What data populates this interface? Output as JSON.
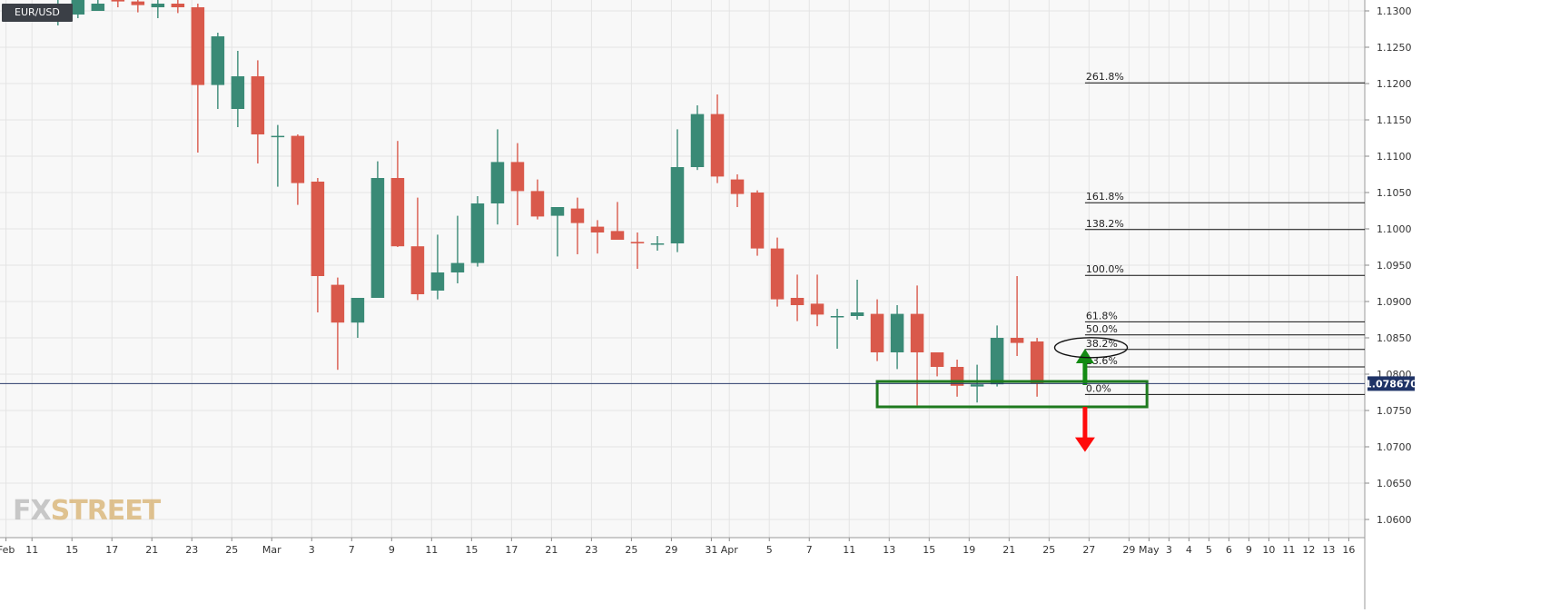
{
  "symbol": "EUR/USD",
  "logo": {
    "part1": "FX",
    "part2": "STREET"
  },
  "colors": {
    "background": "#f8f8f8",
    "grid": "#e4e4e4",
    "bull": "#3a8a76",
    "bear": "#d9594b",
    "price_line": "#2a3b6b",
    "price_label_bg": "#1f3366",
    "fib_line": "#111111",
    "box": "#1f7a1f",
    "arrow_up": "#138a13",
    "arrow_down": "#ff0a0a",
    "axis_text": "#333333"
  },
  "chart_data": {
    "type": "candlestick",
    "title": "EUR/USD",
    "y_axis": {
      "ylim": [
        1.0575,
        1.1315
      ],
      "ticks": [
        "1.0600",
        "1.0650",
        "1.0700",
        "1.0750",
        "1.0800",
        "1.0850",
        "1.0900",
        "1.0950",
        "1.1000",
        "1.1050",
        "1.1100",
        "1.1150",
        "1.1200",
        "1.1250",
        "1.1300"
      ],
      "side": "right"
    },
    "x_axis": {
      "labels": [
        {
          "label": "Feb",
          "i": -2.6
        },
        {
          "label": "11",
          "i": -1.3
        },
        {
          "label": "15",
          "i": 0.7
        },
        {
          "label": "17",
          "i": 2.7
        },
        {
          "label": "21",
          "i": 4.7
        },
        {
          "label": "23",
          "i": 6.7
        },
        {
          "label": "25",
          "i": 8.7
        },
        {
          "label": "Mar",
          "i": 10.7
        },
        {
          "label": "3",
          "i": 12.7
        },
        {
          "label": "7",
          "i": 14.7
        },
        {
          "label": "9",
          "i": 16.7
        },
        {
          "label": "11",
          "i": 18.7
        },
        {
          "label": "15",
          "i": 20.7
        },
        {
          "label": "17",
          "i": 22.7
        },
        {
          "label": "21",
          "i": 24.7
        },
        {
          "label": "23",
          "i": 26.7
        },
        {
          "label": "25",
          "i": 28.7
        },
        {
          "label": "29",
          "i": 30.7
        },
        {
          "label": "31",
          "i": 32.7
        },
        {
          "label": "Apr",
          "i": 33.6
        },
        {
          "label": "5",
          "i": 35.6
        },
        {
          "label": "7",
          "i": 37.6
        },
        {
          "label": "11",
          "i": 39.6
        },
        {
          "label": "13",
          "i": 41.6
        },
        {
          "label": "15",
          "i": 43.6
        },
        {
          "label": "19",
          "i": 45.6
        },
        {
          "label": "21",
          "i": 47.6
        },
        {
          "label": "25",
          "i": 49.6
        },
        {
          "label": "27",
          "i": 51.6
        },
        {
          "label": "29",
          "i": 53.6
        },
        {
          "label": "May",
          "i": 54.6
        },
        {
          "label": "3",
          "i": 55.6
        },
        {
          "label": "4",
          "i": 56.6
        },
        {
          "label": "5",
          "i": 57.6
        },
        {
          "label": "6",
          "i": 58.6
        },
        {
          "label": "9",
          "i": 59.6
        },
        {
          "label": "10",
          "i": 60.6
        },
        {
          "label": "11",
          "i": 61.6
        },
        {
          "label": "12",
          "i": 62.6
        },
        {
          "label": "13",
          "i": 63.6
        },
        {
          "label": "16",
          "i": 64.6
        }
      ],
      "xlim": [
        -2.9,
        65.4
      ]
    },
    "candles": [
      {
        "o": 1.13,
        "h": 1.1315,
        "l": 1.128,
        "c": 1.131
      },
      {
        "o": 1.1295,
        "h": 1.1315,
        "l": 1.129,
        "c": 1.1315
      },
      {
        "o": 1.13,
        "h": 1.1315,
        "l": 1.13,
        "c": 1.131
      },
      {
        "o": 1.1315,
        "h": 1.1315,
        "l": 1.1305,
        "c": 1.1313
      },
      {
        "o": 1.1313,
        "h": 1.1315,
        "l": 1.1298,
        "c": 1.1308
      },
      {
        "o": 1.1305,
        "h": 1.1315,
        "l": 1.129,
        "c": 1.131
      },
      {
        "o": 1.131,
        "h": 1.1315,
        "l": 1.1297,
        "c": 1.1305
      },
      {
        "o": 1.1305,
        "h": 1.131,
        "l": 1.1105,
        "c": 1.1198
      },
      {
        "o": 1.1198,
        "h": 1.127,
        "l": 1.1165,
        "c": 1.1265
      },
      {
        "o": 1.1165,
        "h": 1.1245,
        "l": 1.114,
        "c": 1.121
      },
      {
        "o": 1.121,
        "h": 1.1232,
        "l": 1.109,
        "c": 1.113
      },
      {
        "o": 1.1128,
        "h": 1.1143,
        "l": 1.1058,
        "c": 1.1128
      },
      {
        "o": 1.1128,
        "h": 1.113,
        "l": 1.1033,
        "c": 1.1063
      },
      {
        "o": 1.1065,
        "h": 1.107,
        "l": 1.0885,
        "c": 1.0935
      },
      {
        "o": 1.0923,
        "h": 1.0933,
        "l": 1.0806,
        "c": 1.0871
      },
      {
        "o": 1.0871,
        "h": 1.0905,
        "l": 1.085,
        "c": 1.0905
      },
      {
        "o": 1.0905,
        "h": 1.1093,
        "l": 1.0905,
        "c": 1.107
      },
      {
        "o": 1.107,
        "h": 1.1121,
        "l": 1.0975,
        "c": 1.0976
      },
      {
        "o": 1.0976,
        "h": 1.1043,
        "l": 1.0902,
        "c": 1.091
      },
      {
        "o": 1.0915,
        "h": 1.0992,
        "l": 1.0903,
        "c": 1.094
      },
      {
        "o": 1.094,
        "h": 1.1018,
        "l": 1.0925,
        "c": 1.0953
      },
      {
        "o": 1.0953,
        "h": 1.1045,
        "l": 1.0948,
        "c": 1.1035
      },
      {
        "o": 1.1035,
        "h": 1.1137,
        "l": 1.1006,
        "c": 1.1092
      },
      {
        "o": 1.1092,
        "h": 1.1118,
        "l": 1.1005,
        "c": 1.1052
      },
      {
        "o": 1.1052,
        "h": 1.1068,
        "l": 1.1013,
        "c": 1.1017
      },
      {
        "o": 1.1018,
        "h": 1.103,
        "l": 1.0962,
        "c": 1.103
      },
      {
        "o": 1.1028,
        "h": 1.1043,
        "l": 1.0965,
        "c": 1.1008
      },
      {
        "o": 1.1003,
        "h": 1.1012,
        "l": 1.0966,
        "c": 1.0995
      },
      {
        "o": 1.0997,
        "h": 1.1037,
        "l": 1.0988,
        "c": 1.0985
      },
      {
        "o": 1.0982,
        "h": 1.0995,
        "l": 1.0945,
        "c": 1.098
      },
      {
        "o": 1.098,
        "h": 1.099,
        "l": 1.097,
        "c": 1.098
      },
      {
        "o": 1.098,
        "h": 1.1137,
        "l": 1.0968,
        "c": 1.1085
      },
      {
        "o": 1.1085,
        "h": 1.117,
        "l": 1.1081,
        "c": 1.1158
      },
      {
        "o": 1.1158,
        "h": 1.1185,
        "l": 1.1063,
        "c": 1.1072
      },
      {
        "o": 1.1068,
        "h": 1.1075,
        "l": 1.103,
        "c": 1.1048
      },
      {
        "o": 1.105,
        "h": 1.1053,
        "l": 1.0963,
        "c": 1.0973
      },
      {
        "o": 1.0973,
        "h": 1.0988,
        "l": 1.0893,
        "c": 1.0903
      },
      {
        "o": 1.0905,
        "h": 1.0937,
        "l": 1.0873,
        "c": 1.0895
      },
      {
        "o": 1.0897,
        "h": 1.0937,
        "l": 1.0866,
        "c": 1.0882
      },
      {
        "o": 1.088,
        "h": 1.089,
        "l": 1.0835,
        "c": 1.088
      },
      {
        "o": 1.088,
        "h": 1.093,
        "l": 1.0875,
        "c": 1.0885
      },
      {
        "o": 1.0883,
        "h": 1.0903,
        "l": 1.0818,
        "c": 1.083
      },
      {
        "o": 1.083,
        "h": 1.0895,
        "l": 1.0807,
        "c": 1.0883
      },
      {
        "o": 1.0883,
        "h": 1.0922,
        "l": 1.0757,
        "c": 1.083
      },
      {
        "o": 1.083,
        "h": 1.083,
        "l": 1.0797,
        "c": 1.081
      },
      {
        "o": 1.081,
        "h": 1.082,
        "l": 1.0769,
        "c": 1.0784
      },
      {
        "o": 1.0783,
        "h": 1.0813,
        "l": 1.0761,
        "c": 1.0786
      },
      {
        "o": 1.0786,
        "h": 1.0867,
        "l": 1.0783,
        "c": 1.085
      },
      {
        "o": 1.085,
        "h": 1.0935,
        "l": 1.0825,
        "c": 1.0843
      },
      {
        "o": 1.0845,
        "h": 1.085,
        "l": 1.0769,
        "c": 1.0787
      }
    ],
    "current_price": {
      "value": 1.0787,
      "label": "1.078670"
    },
    "fib_levels": [
      {
        "label": "261.8%",
        "value": 1.1201
      },
      {
        "label": "161.8%",
        "value": 1.1036
      },
      {
        "label": "138.2%",
        "value": 1.0999
      },
      {
        "label": "100.0%",
        "value": 1.0936
      },
      {
        "label": "61.8%",
        "value": 1.0872
      },
      {
        "label": "50.0%",
        "value": 1.0854
      },
      {
        "label": "38.2%",
        "value": 1.0834
      },
      {
        "label": "23.6%",
        "value": 1.081
      },
      {
        "label": "0.0%",
        "value": 1.0772
      }
    ],
    "fib_range": {
      "i_start": 51.4,
      "i_end_label": 51.4
    },
    "support_box": {
      "i_start": 41.0,
      "i_end": 54.5,
      "top": 1.079,
      "bottom": 1.0755
    },
    "arrows": {
      "up": {
        "i": 51.4,
        "from": 1.0785,
        "to": 1.083
      },
      "down": {
        "i": 51.4,
        "from": 1.0755,
        "to": 1.0698
      }
    },
    "highlight_ellipse": {
      "i": 51.7,
      "value": 1.0834,
      "label": "38.2%"
    }
  }
}
